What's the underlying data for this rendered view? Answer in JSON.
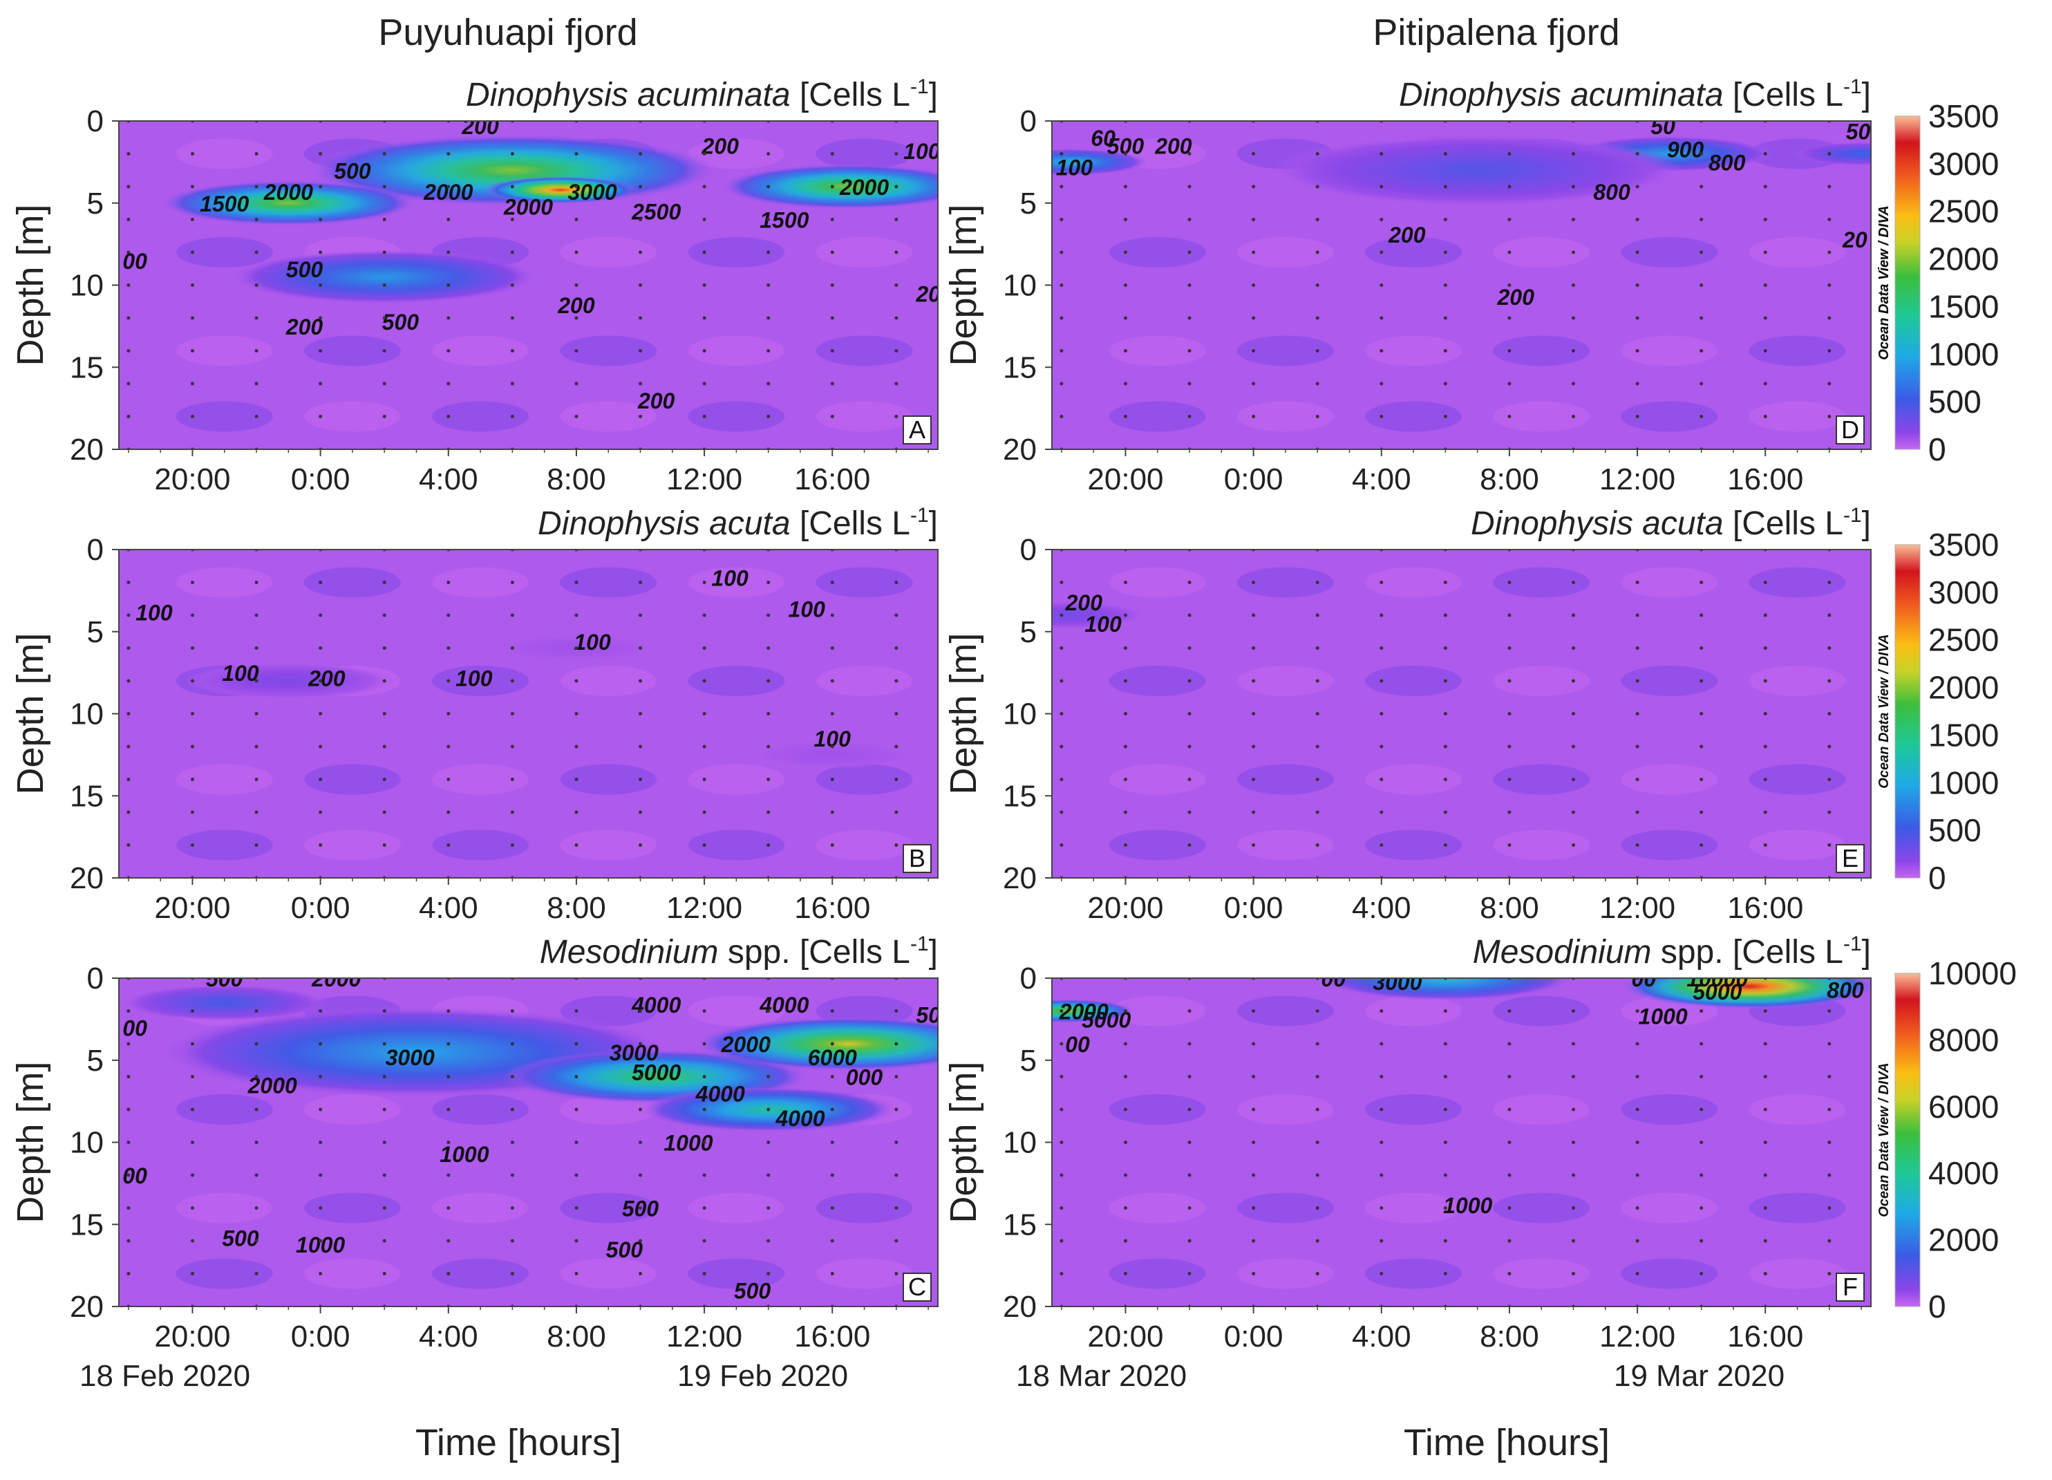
{
  "figure": {
    "columns": [
      {
        "title": "Puyuhuapi fjord",
        "start_date": "18 Feb 2020",
        "end_date": "19 Feb 2020"
      },
      {
        "title": "Pitipalena fjord",
        "start_date": "18 Mar 2020",
        "end_date": "19 Mar 2020"
      }
    ],
    "x_axis_label": "Time [hours]",
    "y_axis_label": "Depth [m]",
    "odv_credit": "Ocean Data View / DIVA",
    "colors": {
      "background": "#c467f0",
      "low": "#8a44e6",
      "mid": "#1ec8a0",
      "high": "#f0c020",
      "max": "#e02020"
    }
  },
  "chart_data": [
    {
      "type": "heatmap",
      "panel": "A",
      "column": 0,
      "row": 0,
      "title_italic": "Dinophysis acuminata",
      "title_unit": "[Cells L",
      "title_sup": "-1",
      "title_close": "]",
      "xlabel": "Time [hours]",
      "ylabel": "Depth [m]",
      "x_ticks": [
        "20:00",
        "0:00",
        "4:00",
        "8:00",
        "12:00",
        "16:00"
      ],
      "x_hours": [
        20,
        24,
        28,
        32,
        36,
        40
      ],
      "xlim": [
        17.7,
        43.3
      ],
      "y_ticks": [
        0,
        5,
        10,
        15,
        20
      ],
      "ylim": [
        0,
        20
      ],
      "colorbar": {
        "min": 0,
        "max": 3500,
        "ticks": [
          3500,
          3000,
          2500,
          2000,
          1500,
          1000,
          500,
          0
        ]
      },
      "hotspots": [
        {
          "t": 30,
          "z": 3,
          "v": 2000,
          "r": 4.0
        },
        {
          "t": 23,
          "z": 5,
          "v": 2000,
          "r": 2.5
        },
        {
          "t": 31.5,
          "z": 4.2,
          "v": 3000,
          "r": 1.5
        },
        {
          "t": 40.5,
          "z": 4,
          "v": 2000,
          "r": 2.5
        },
        {
          "t": 26,
          "z": 9.5,
          "v": 900,
          "r": 3.0
        }
      ],
      "contour_labels": [
        {
          "text": "200",
          "t": 29,
          "z": 0.3
        },
        {
          "text": "200",
          "t": 36.5,
          "z": 1.5
        },
        {
          "text": "100",
          "t": 42.8,
          "z": 1.8
        },
        {
          "text": "500",
          "t": 25,
          "z": 3
        },
        {
          "text": "2000",
          "t": 23,
          "z": 4.3
        },
        {
          "text": "2000",
          "t": 28,
          "z": 4.3
        },
        {
          "text": "3000",
          "t": 32.5,
          "z": 4.3
        },
        {
          "text": "2000",
          "t": 41,
          "z": 4
        },
        {
          "text": "1500",
          "t": 21,
          "z": 5
        },
        {
          "text": "2000",
          "t": 30.5,
          "z": 5.2
        },
        {
          "text": "2500",
          "t": 34.5,
          "z": 5.5
        },
        {
          "text": "1500",
          "t": 38.5,
          "z": 6
        },
        {
          "text": "00",
          "t": 18.2,
          "z": 8.5
        },
        {
          "text": "500",
          "t": 23.5,
          "z": 9
        },
        {
          "text": "200",
          "t": 32,
          "z": 11.2
        },
        {
          "text": "20",
          "t": 43,
          "z": 10.5
        },
        {
          "text": "200",
          "t": 23.5,
          "z": 12.5
        },
        {
          "text": "500",
          "t": 26.5,
          "z": 12.2
        },
        {
          "text": "200",
          "t": 34.5,
          "z": 17
        }
      ]
    },
    {
      "type": "heatmap",
      "panel": "B",
      "column": 0,
      "row": 1,
      "title_italic": "Dinophysis acuta",
      "title_unit": "[Cells L",
      "title_sup": "-1",
      "title_close": "]",
      "xlabel": "Time [hours]",
      "ylabel": "Depth [m]",
      "x_ticks": [
        "20:00",
        "0:00",
        "4:00",
        "8:00",
        "12:00",
        "16:00"
      ],
      "x_hours": [
        20,
        24,
        28,
        32,
        36,
        40
      ],
      "xlim": [
        17.7,
        43.3
      ],
      "y_ticks": [
        0,
        5,
        10,
        15,
        20
      ],
      "ylim": [
        0,
        20
      ],
      "colorbar": null,
      "hotspots": [
        {
          "t": 23,
          "z": 8,
          "v": 250,
          "r": 2.0
        },
        {
          "t": 32,
          "z": 6,
          "v": 120,
          "r": 1.5
        },
        {
          "t": 40,
          "z": 12.5,
          "v": 120,
          "r": 1.5
        }
      ],
      "contour_labels": [
        {
          "text": "100",
          "t": 36.8,
          "z": 1.7
        },
        {
          "text": "100",
          "t": 18.8,
          "z": 3.8
        },
        {
          "text": "100",
          "t": 39.2,
          "z": 3.6
        },
        {
          "text": "100",
          "t": 32.5,
          "z": 5.6
        },
        {
          "text": "100",
          "t": 21.5,
          "z": 7.5
        },
        {
          "text": "200",
          "t": 24.2,
          "z": 7.8
        },
        {
          "text": "100",
          "t": 28.8,
          "z": 7.8
        },
        {
          "text": "100",
          "t": 40,
          "z": 11.5
        }
      ]
    },
    {
      "type": "heatmap",
      "panel": "C",
      "column": 0,
      "row": 2,
      "title_italic": "Mesodinium",
      "title_unit": "spp. [Cells L",
      "title_sup": "-1",
      "title_close": "]",
      "xlabel": "Time [hours]",
      "ylabel": "Depth [m]",
      "x_ticks": [
        "20:00",
        "0:00",
        "4:00",
        "8:00",
        "12:00",
        "16:00"
      ],
      "x_hours": [
        20,
        24,
        28,
        32,
        36,
        40
      ],
      "xlim": [
        17.7,
        43.3
      ],
      "y_ticks": [
        0,
        5,
        10,
        15,
        20
      ],
      "ylim": [
        0,
        20
      ],
      "colorbar": null,
      "hotspots": [
        {
          "t": 27,
          "z": 4.5,
          "v": 2800,
          "r": 5.0
        },
        {
          "t": 34.5,
          "z": 6,
          "v": 5000,
          "r": 3.0
        },
        {
          "t": 40.5,
          "z": 4,
          "v": 6500,
          "r": 3.0
        },
        {
          "t": 38,
          "z": 8,
          "v": 4000,
          "r": 2.5
        },
        {
          "t": 21,
          "z": 1.5,
          "v": 1500,
          "r": 2.0
        }
      ],
      "contour_labels": [
        {
          "text": "500",
          "t": 21,
          "z": 0
        },
        {
          "text": "2000",
          "t": 24.5,
          "z": 0
        },
        {
          "text": "4000",
          "t": 34.5,
          "z": 1.6
        },
        {
          "text": "4000",
          "t": 38.5,
          "z": 1.6
        },
        {
          "text": "50",
          "t": 43,
          "z": 2.2
        },
        {
          "text": "00",
          "t": 18.2,
          "z": 3
        },
        {
          "text": "3000",
          "t": 33.8,
          "z": 4.5
        },
        {
          "text": "2000",
          "t": 37.3,
          "z": 4
        },
        {
          "text": "3000",
          "t": 26.8,
          "z": 4.8
        },
        {
          "text": "5000",
          "t": 34.5,
          "z": 5.7
        },
        {
          "text": "4000",
          "t": 36.5,
          "z": 7
        },
        {
          "text": "6000",
          "t": 40,
          "z": 4.8
        },
        {
          "text": "000",
          "t": 41,
          "z": 6
        },
        {
          "text": "2000",
          "t": 22.5,
          "z": 6.5
        },
        {
          "text": "4000",
          "t": 39,
          "z": 8.5
        },
        {
          "text": "1000",
          "t": 35.5,
          "z": 10
        },
        {
          "text": "1000",
          "t": 28.5,
          "z": 10.7
        },
        {
          "text": "00",
          "t": 18.2,
          "z": 12
        },
        {
          "text": "500",
          "t": 34,
          "z": 14
        },
        {
          "text": "500",
          "t": 21.5,
          "z": 15.8
        },
        {
          "text": "1000",
          "t": 24,
          "z": 16.2
        },
        {
          "text": "500",
          "t": 33.5,
          "z": 16.5
        },
        {
          "text": "500",
          "t": 37.5,
          "z": 19
        }
      ]
    },
    {
      "type": "heatmap",
      "panel": "D",
      "column": 1,
      "row": 0,
      "title_italic": "Dinophysis acuminata",
      "title_unit": "[Cells L",
      "title_sup": "-1",
      "title_close": "]",
      "xlabel": "Time [hours]",
      "ylabel": "Depth [m]",
      "x_ticks": [
        "20:00",
        "0:00",
        "4:00",
        "8:00",
        "12:00",
        "16:00"
      ],
      "x_hours": [
        20,
        24,
        28,
        32,
        36,
        40
      ],
      "xlim": [
        17.7,
        43.3
      ],
      "y_ticks": [
        0,
        5,
        10,
        15,
        20
      ],
      "ylim": [
        0,
        20
      ],
      "colorbar": {
        "min": 0,
        "max": 3500,
        "ticks": [
          3500,
          3000,
          2500,
          2000,
          1500,
          1000,
          500,
          0
        ]
      },
      "hotspots": [
        {
          "t": 18.3,
          "z": 2.5,
          "v": 1100,
          "r": 1.5
        },
        {
          "t": 37,
          "z": 2,
          "v": 950,
          "r": 2.0
        },
        {
          "t": 31,
          "z": 3,
          "v": 450,
          "r": 4.0
        },
        {
          "t": 43,
          "z": 2,
          "v": 600,
          "r": 1.3
        }
      ],
      "contour_labels": [
        {
          "text": "60",
          "t": 19.3,
          "z": 1
        },
        {
          "text": "500",
          "t": 20,
          "z": 1.5
        },
        {
          "text": "200",
          "t": 21.5,
          "z": 1.5
        },
        {
          "text": "100",
          "t": 18.4,
          "z": 2.8
        },
        {
          "text": "50",
          "t": 36.8,
          "z": 0.3
        },
        {
          "text": "50",
          "t": 42.9,
          "z": 0.6
        },
        {
          "text": "900",
          "t": 37.5,
          "z": 1.7
        },
        {
          "text": "800",
          "t": 38.8,
          "z": 2.5
        },
        {
          "text": "800",
          "t": 35.2,
          "z": 4.3
        },
        {
          "text": "200",
          "t": 28.8,
          "z": 6.9
        },
        {
          "text": "20",
          "t": 42.8,
          "z": 7.2
        },
        {
          "text": "200",
          "t": 32.2,
          "z": 10.7
        }
      ]
    },
    {
      "type": "heatmap",
      "panel": "E",
      "column": 1,
      "row": 1,
      "title_italic": "Dinophysis acuta",
      "title_unit": "[Cells L",
      "title_sup": "-1",
      "title_close": "]",
      "xlabel": "Time [hours]",
      "ylabel": "Depth [m]",
      "x_ticks": [
        "20:00",
        "0:00",
        "4:00",
        "8:00",
        "12:00",
        "16:00"
      ],
      "x_hours": [
        20,
        24,
        28,
        32,
        36,
        40
      ],
      "xlim": [
        17.7,
        43.3
      ],
      "y_ticks": [
        0,
        5,
        10,
        15,
        20
      ],
      "ylim": [
        0,
        20
      ],
      "colorbar": {
        "min": 0,
        "max": 3500,
        "ticks": [
          3500,
          3000,
          2500,
          2000,
          1500,
          1000,
          500,
          0
        ]
      },
      "hotspots": [
        {
          "t": 18.2,
          "z": 4,
          "v": 300,
          "r": 1.5
        }
      ],
      "contour_labels": [
        {
          "text": "200",
          "t": 18.7,
          "z": 3.2
        },
        {
          "text": "100",
          "t": 19.3,
          "z": 4.5
        }
      ]
    },
    {
      "type": "heatmap",
      "panel": "F",
      "column": 1,
      "row": 2,
      "title_italic": "Mesodinium",
      "title_unit": "spp. [Cells L",
      "title_sup": "-1",
      "title_close": "]",
      "xlabel": "Time [hours]",
      "ylabel": "Depth [m]",
      "x_ticks": [
        "20:00",
        "0:00",
        "4:00",
        "8:00",
        "12:00",
        "16:00"
      ],
      "x_hours": [
        20,
        24,
        28,
        32,
        36,
        40
      ],
      "xlim": [
        17.7,
        43.3
      ],
      "y_ticks": [
        0,
        5,
        10,
        15,
        20
      ],
      "ylim": [
        0,
        20
      ],
      "colorbar": {
        "min": 0,
        "max": 10000,
        "ticks": [
          10000,
          8000,
          6000,
          4000,
          2000,
          0
        ]
      },
      "hotspots": [
        {
          "t": 18.2,
          "z": 2,
          "v": 6000,
          "r": 1.3
        },
        {
          "t": 30,
          "z": 0,
          "v": 3500,
          "r": 2.5
        },
        {
          "t": 39.5,
          "z": 0.5,
          "v": 9000,
          "r": 2.5
        }
      ],
      "contour_labels": [
        {
          "text": "00",
          "t": 26.5,
          "z": 0
        },
        {
          "text": "3000",
          "t": 28.5,
          "z": 0.2
        },
        {
          "text": "00",
          "t": 36.2,
          "z": 0
        },
        {
          "text": "10000",
          "t": 38.5,
          "z": 0
        },
        {
          "text": "5000",
          "t": 38.5,
          "z": 0.8
        },
        {
          "text": "800",
          "t": 42.5,
          "z": 0.7
        },
        {
          "text": "1000",
          "t": 36.8,
          "z": 2.3
        },
        {
          "text": "2000",
          "t": 18.7,
          "z": 2
        },
        {
          "text": "5000",
          "t": 19.4,
          "z": 2.5
        },
        {
          "text": "00",
          "t": 18.5,
          "z": 4
        },
        {
          "text": "1000",
          "t": 30.7,
          "z": 13.8
        }
      ]
    }
  ]
}
